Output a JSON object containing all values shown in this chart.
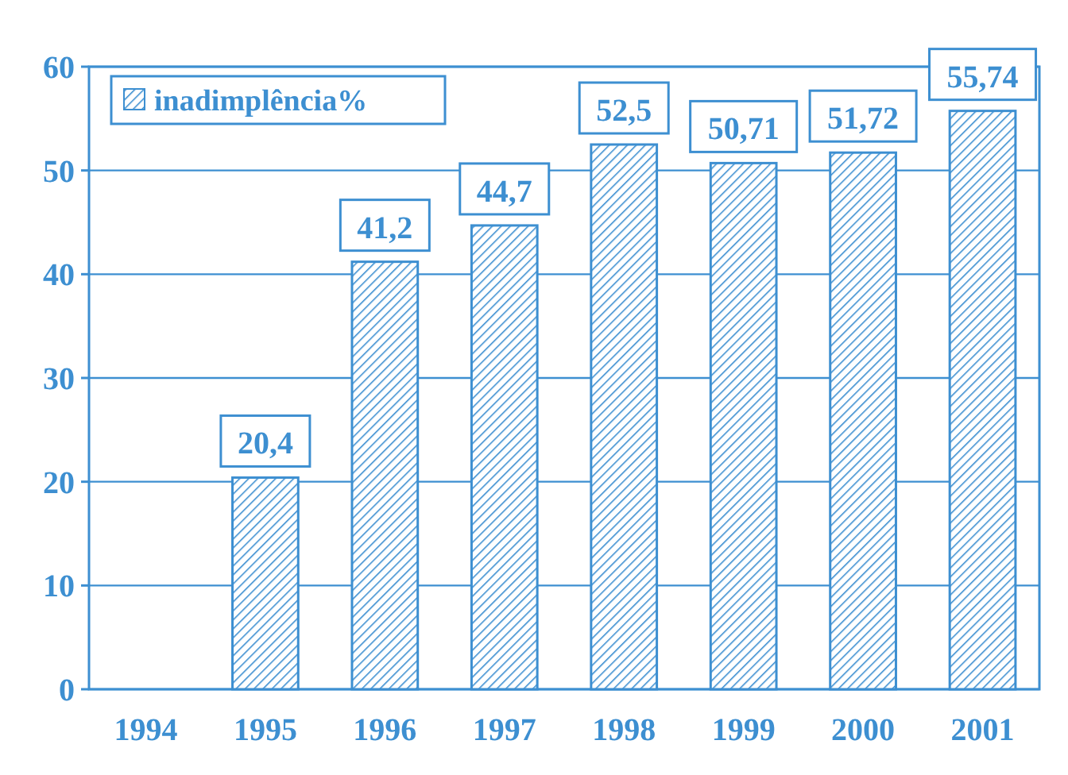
{
  "chart_data": {
    "type": "bar",
    "categories": [
      "1994",
      "1995",
      "1996",
      "1997",
      "1998",
      "1999",
      "2000",
      "2001"
    ],
    "series": [
      {
        "name": "inadimplência%",
        "color": "#3d8fd1",
        "values": [
          null,
          20.4,
          41.2,
          44.7,
          52.5,
          50.71,
          51.72,
          55.74
        ],
        "value_labels": [
          null,
          "20,4",
          "41,2",
          "44,7",
          "52,5",
          "50,71",
          "51,72",
          "55,74"
        ]
      }
    ],
    "ylim": [
      0,
      60
    ],
    "yticks": [
      0,
      10,
      20,
      30,
      40,
      50,
      60
    ],
    "grid": "y",
    "legend": "top left"
  }
}
